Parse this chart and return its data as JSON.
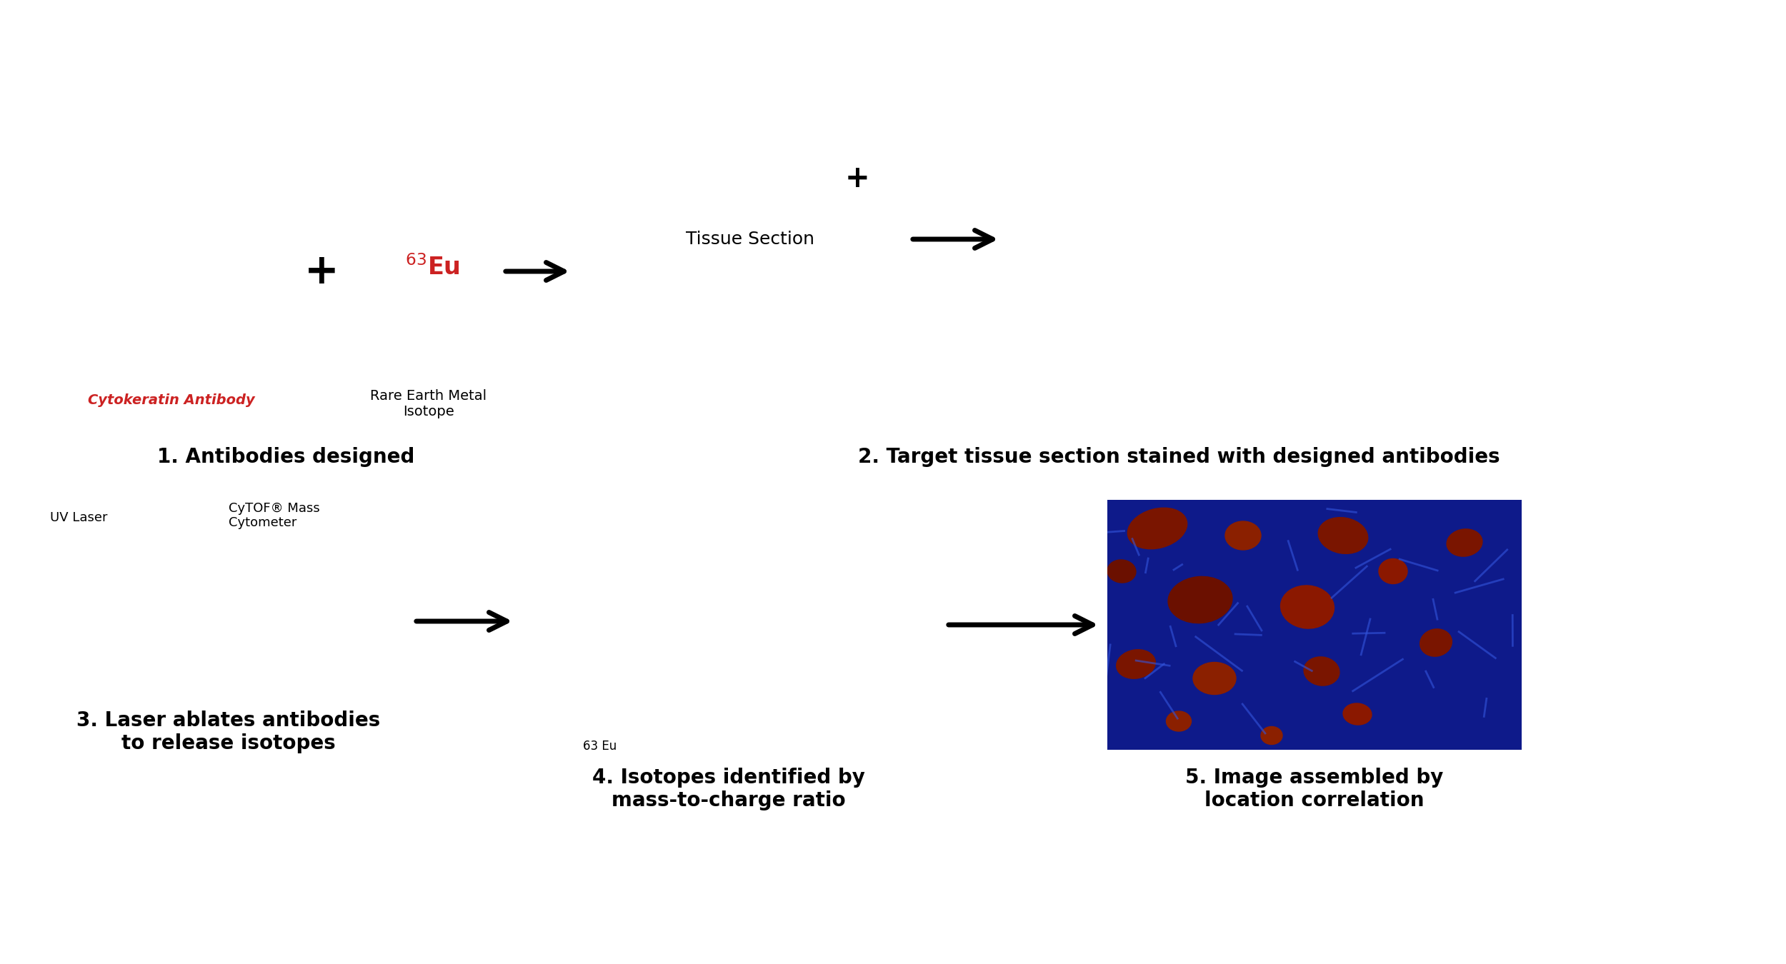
{
  "bg_color": "#ffffff",
  "border_color": "#1a3a6b",
  "tissue_fill": "#e8c4a0",
  "tissue_border": "#4a7ab5",
  "red_color": "#cc2222",
  "yellow_color": "#e8d800",
  "blue_color": "#4488cc",
  "green_color": "#44aa44",
  "gray_tab": "#aab4c8",
  "label1": "1. Antibodies designed",
  "label2": "2. Target tissue section stained with designed antibodies",
  "label3": "3. Laser ablates antibodies\nto release isotopes",
  "label4": "4. Isotopes identified by\nmass-to-charge ratio",
  "label5": "5. Image assembled by\nlocation correlation",
  "cytokeratin_label": "Cytokeratin Antibody",
  "rare_earth_label": "Rare Earth Metal\nIsotope",
  "tissue_section_label": "Tissue Section",
  "uv_laser_label": "UV Laser",
  "cytof_label": "CyTOF® Mass\nCytometer",
  "isotope_label": "63 Eu",
  "title_fontsize": 20,
  "label_fontsize": 18,
  "small_fontsize": 13
}
